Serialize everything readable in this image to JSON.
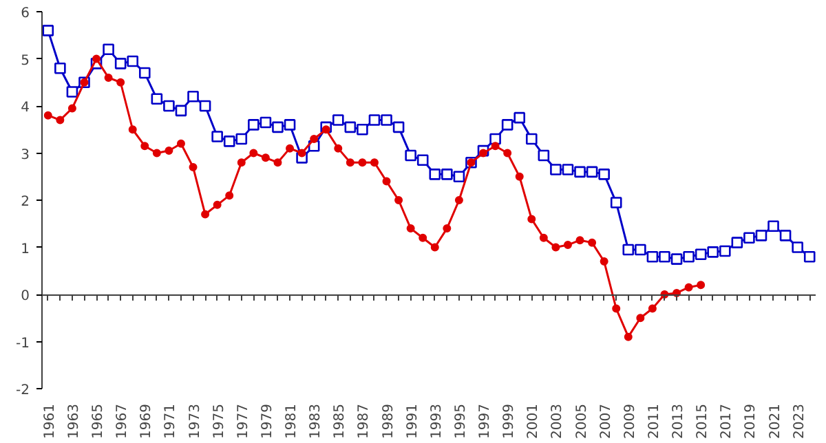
{
  "chart_data": {
    "type": "line",
    "x": [
      1961,
      1962,
      1963,
      1964,
      1965,
      1966,
      1967,
      1968,
      1969,
      1970,
      1971,
      1972,
      1973,
      1974,
      1975,
      1976,
      1977,
      1978,
      1979,
      1980,
      1981,
      1982,
      1983,
      1984,
      1985,
      1986,
      1987,
      1988,
      1989,
      1990,
      1991,
      1992,
      1993,
      1994,
      1995,
      1996,
      1997,
      1998,
      1999,
      2000,
      2001,
      2002,
      2003,
      2004,
      2005,
      2006,
      2007,
      2008,
      2009,
      2010,
      2011,
      2012,
      2013,
      2014,
      2015,
      2016,
      2017,
      2018,
      2019,
      2020,
      2021,
      2022,
      2023,
      2024
    ],
    "series": [
      {
        "color": "#0000c8",
        "marker": "square",
        "values": [
          5.6,
          4.8,
          4.3,
          4.5,
          4.9,
          5.2,
          4.9,
          4.95,
          4.7,
          4.15,
          4.0,
          3.9,
          4.2,
          4.0,
          3.35,
          3.25,
          3.3,
          3.6,
          3.65,
          3.55,
          3.6,
          2.9,
          3.15,
          3.55,
          3.7,
          3.55,
          3.5,
          3.7,
          3.7,
          3.55,
          2.95,
          2.85,
          2.55,
          2.55,
          2.5,
          2.8,
          3.05,
          3.3,
          3.6,
          3.75,
          3.3,
          2.95,
          2.65,
          2.65,
          2.6,
          2.6,
          2.55,
          1.95,
          0.95,
          0.95,
          0.8,
          0.8,
          0.75,
          0.8,
          0.85,
          0.9,
          0.92,
          1.1,
          1.2,
          1.25,
          1.45,
          1.25,
          1.0,
          0.8
        ]
      },
      {
        "color": "#e00000",
        "marker": "circle",
        "values": [
          3.8,
          3.7,
          3.95,
          4.5,
          5.0,
          4.6,
          4.5,
          3.5,
          3.15,
          3.0,
          3.05,
          3.2,
          2.7,
          1.7,
          1.9,
          2.1,
          2.8,
          3.0,
          2.9,
          2.8,
          3.1,
          3.0,
          3.3,
          3.5,
          3.1,
          2.8,
          2.8,
          2.8,
          2.4,
          2.0,
          1.4,
          1.2,
          1.0,
          1.4,
          2.0,
          2.8,
          3.0,
          3.15,
          3.0,
          2.5,
          1.6,
          1.2,
          1.0,
          1.05,
          1.15,
          1.1,
          0.7,
          -0.3,
          -0.9,
          -0.5,
          -0.3,
          0.0,
          0.03,
          0.15,
          0.2,
          null,
          null,
          null,
          null,
          null,
          null,
          null,
          null,
          null
        ]
      }
    ],
    "xlim": [
      1960.5,
      2024.5
    ],
    "xticks": [
      1961,
      {
        "value": 1962,
        "label": null
      },
      1963,
      {
        "value": 1964,
        "label": null
      },
      1965,
      {
        "value": 1966,
        "label": null
      },
      1967,
      {
        "value": 1968,
        "label": null
      },
      1969,
      {
        "value": 1970,
        "label": null
      },
      1971,
      {
        "value": 1972,
        "label": null
      },
      1973,
      {
        "value": 1974,
        "label": null
      },
      1975,
      {
        "value": 1976,
        "label": null
      },
      1977,
      {
        "value": 1978,
        "label": null
      },
      1979,
      {
        "value": 1980,
        "label": null
      },
      1981,
      {
        "value": 1982,
        "label": null
      },
      1983,
      {
        "value": 1984,
        "label": null
      },
      1985,
      {
        "value": 1986,
        "label": null
      },
      1987,
      {
        "value": 1988,
        "label": null
      },
      1989,
      {
        "value": 1990,
        "label": null
      },
      1991,
      {
        "value": 1992,
        "label": null
      },
      1993,
      {
        "value": 1994,
        "label": null
      },
      1995,
      {
        "value": 1996,
        "label": null
      },
      1997,
      {
        "value": 1998,
        "label": null
      },
      1999,
      {
        "value": 2000,
        "label": null
      },
      2001,
      {
        "value": 2002,
        "label": null
      },
      2003,
      {
        "value": 2004,
        "label": null
      },
      2005,
      {
        "value": 2006,
        "label": null
      },
      2007,
      {
        "value": 2008,
        "label": null
      },
      2009,
      {
        "value": 2010,
        "label": null
      },
      2011,
      {
        "value": 2012,
        "label": null
      },
      2013,
      {
        "value": 2014,
        "label": null
      },
      2015,
      {
        "value": 2016,
        "label": null
      },
      2017,
      {
        "value": 2018,
        "label": null
      },
      2019,
      {
        "value": 2020,
        "label": null
      },
      2021,
      {
        "value": 2022,
        "label": null
      },
      2023,
      {
        "value": 2024,
        "label": null
      }
    ],
    "ylim": [
      -2,
      6
    ],
    "yticks": [
      -2,
      -1,
      0,
      1,
      2,
      3,
      4,
      5,
      6
    ],
    "line_style": "solid"
  }
}
